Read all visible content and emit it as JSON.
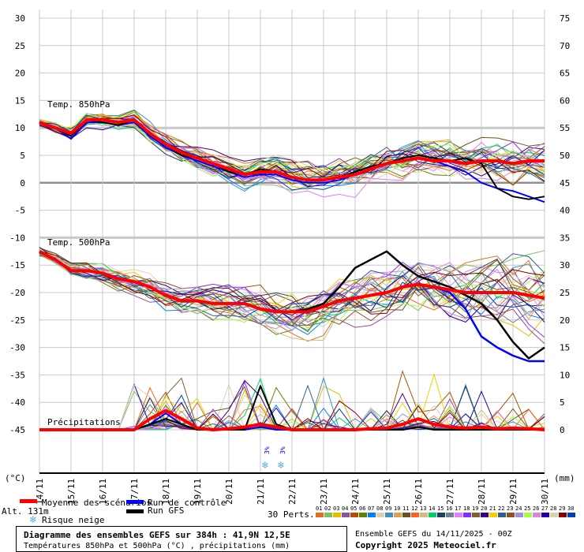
{
  "chart_data": {
    "type": "line",
    "title": "Diagramme des ensembles GEFS sur 384h : 41,9N 12,5E",
    "subtitle": "Températures 850hPa et 500hPa (°C) , précipitations (mm)",
    "run_info": "Ensemble GEFS du 14/11/2025 - 00Z",
    "copyright": "Copyright 2025 Meteociel.fr",
    "left_axis_unit": "(°C)",
    "right_axis_unit": "(mm)",
    "altitude": "Alt. 131m",
    "left_ticks": [
      30,
      25,
      20,
      15,
      10,
      5,
      0,
      -5,
      -10,
      -15,
      -20,
      -25,
      -30,
      -35,
      -40,
      -45
    ],
    "right_ticks": [
      75,
      70,
      65,
      60,
      55,
      50,
      45,
      40,
      35,
      30,
      25,
      20,
      15,
      10,
      5,
      0
    ],
    "ylim": [
      -45,
      30
    ],
    "x_labels": [
      "14/11",
      "15/11",
      "16/11",
      "17/11",
      "18/11",
      "19/11",
      "20/11",
      "21/11",
      "22/11",
      "23/11",
      "24/11",
      "25/11",
      "26/11",
      "27/11",
      "28/11",
      "29/11",
      "30/11"
    ],
    "panel_labels": {
      "t850": "Temp. 850hPa",
      "t500": "Temp. 500hPa",
      "precip": "Précipitations"
    },
    "x_step_days": 0.5,
    "series": [
      {
        "name": "Moyenne des scénarios 850hPa",
        "color": "#ff0000",
        "values": [
          11,
          10,
          9,
          11.5,
          11.5,
          11,
          11.5,
          9,
          7,
          5.5,
          4.5,
          3.5,
          2.5,
          1.5,
          2,
          2,
          1,
          0.5,
          0.5,
          1,
          1.5,
          2.5,
          3.5,
          4,
          4.5,
          4,
          4,
          3.5,
          4,
          4,
          3.5,
          4,
          4
        ]
      },
      {
        "name": "Run de contrôle 850hPa",
        "color": "#0000ff",
        "values": [
          11,
          10,
          8,
          11,
          11,
          10.5,
          11,
          8.5,
          6.5,
          5,
          4,
          3,
          2,
          1,
          1.5,
          1.5,
          0.5,
          0,
          0,
          0.5,
          1.5,
          2.5,
          3.5,
          4,
          4.5,
          4,
          3,
          2,
          0,
          -1,
          -1.5,
          -2.5,
          -3.5
        ]
      },
      {
        "name": "Run GFS 850hPa",
        "color": "#000000",
        "values": [
          11,
          10,
          8.5,
          11.5,
          11,
          10.5,
          11.5,
          9,
          7,
          5,
          4.5,
          3.5,
          2,
          1.5,
          2.5,
          2,
          1,
          0.5,
          0.5,
          1,
          2,
          3,
          3.5,
          4.5,
          5,
          4.5,
          4,
          4.5,
          3.5,
          -1,
          -2.5,
          -3,
          -2.5
        ]
      },
      {
        "name": "Moyenne des scénarios 500hPa",
        "color": "#ff0000",
        "values": [
          -12.5,
          -14,
          -16,
          -16,
          -16.5,
          -17.5,
          -18,
          -19,
          -20.5,
          -21.5,
          -21.5,
          -22,
          -22,
          -22,
          -23,
          -23.5,
          -23.5,
          -23.5,
          -22.5,
          -21.5,
          -21,
          -20.5,
          -20,
          -19,
          -18.5,
          -19,
          -19.5,
          -20,
          -20,
          -20,
          -20,
          -20.5,
          -21
        ]
      },
      {
        "name": "Run de contrôle 500hPa",
        "color": "#0000ff",
        "values": [
          -12.5,
          -14,
          -16,
          -16,
          -16.5,
          -17.5,
          -18,
          -19,
          -20.5,
          -21.5,
          -21.5,
          -22,
          -22,
          -22,
          -23,
          -23.5,
          -23.5,
          -23,
          -22.5,
          -21.5,
          -21,
          -20.5,
          -20,
          -19,
          -18.5,
          -19,
          -20,
          -23,
          -28,
          -30,
          -31.5,
          -32.5,
          -32.5
        ]
      },
      {
        "name": "Run GFS 500hPa",
        "color": "#000000",
        "values": [
          -12.5,
          -14,
          -16,
          -16,
          -16.5,
          -17.5,
          -18,
          -19,
          -20.5,
          -21.5,
          -21.5,
          -22,
          -22,
          -22,
          -23,
          -23.5,
          -23.5,
          -23,
          -22,
          -19,
          -15.5,
          -14,
          -12.5,
          -15,
          -17,
          -18,
          -19,
          -20.5,
          -22,
          -25,
          -29,
          -32,
          -30
        ]
      },
      {
        "name": "Moyenne des scénarios précipitations (mm)",
        "color": "#ff0000",
        "values": [
          0,
          0,
          0,
          0,
          0,
          0,
          0,
          2,
          3.5,
          2,
          0.3,
          0,
          0.2,
          0.5,
          1,
          0.5,
          0,
          0,
          0,
          0,
          0,
          0.2,
          0.3,
          1,
          2,
          1,
          0.5,
          0.3,
          0.5,
          0.2,
          0.3,
          0.2,
          0
        ]
      },
      {
        "name": "Run de contrôle précipitations (mm)",
        "color": "#0000ff",
        "values": [
          0,
          0,
          0,
          0,
          0,
          0,
          0,
          1,
          3,
          1,
          0,
          0,
          0,
          0,
          0.5,
          0,
          0,
          0,
          0,
          0,
          0,
          0,
          0,
          0,
          0.5,
          0,
          0,
          0,
          0,
          0,
          0,
          0,
          0
        ]
      },
      {
        "name": "Run GFS précipitations (mm)",
        "color": "#000000",
        "values": [
          0,
          0,
          0,
          0,
          0,
          0,
          0,
          1,
          2,
          1,
          0,
          0,
          0,
          0,
          8,
          1,
          0,
          0,
          0,
          0,
          0,
          0,
          0,
          0,
          0.5,
          0,
          0,
          0,
          0,
          0,
          0,
          0,
          0
        ]
      }
    ],
    "member_spread": {
      "t850_early": 1,
      "t850_late": 4,
      "t500_early": 1,
      "t500_late": 5,
      "precip_max": 10
    },
    "snow_risk": [
      {
        "day": "21/11",
        "offset_days": 0.2,
        "label": "3%"
      },
      {
        "day": "21/11",
        "offset_days": 0.7,
        "label": "3%"
      }
    ]
  },
  "legend": {
    "mean": "Moyenne des scénarios",
    "control": "Run de contrôle",
    "gfs": "Run GFS",
    "snow": "Risque neige",
    "perts_label": "30 Perts.",
    "members": [
      "01",
      "02",
      "03",
      "04",
      "05",
      "06",
      "07",
      "08",
      "09",
      "10",
      "11",
      "12",
      "13",
      "14",
      "15",
      "16",
      "17",
      "18",
      "19",
      "20",
      "21",
      "22",
      "23",
      "24",
      "25",
      "26",
      "27",
      "28",
      "29",
      "30"
    ],
    "member_colors": [
      "#e07020",
      "#80c060",
      "#e0c000",
      "#9050a0",
      "#b05000",
      "#608000",
      "#0080ff",
      "#e0d0b0",
      "#4090c0",
      "#e0a050",
      "#705020",
      "#ff6020",
      "#d0c080",
      "#00d060",
      "#204060",
      "#708090",
      "#e080ff",
      "#8030ff",
      "#806030",
      "#400080",
      "#f0d000",
      "#306090",
      "#905020",
      "#a090e0",
      "#a0ff40",
      "#e080e0",
      "#2000a0",
      "#e0d0b0",
      "#800000",
      "#0040c0"
    ]
  }
}
